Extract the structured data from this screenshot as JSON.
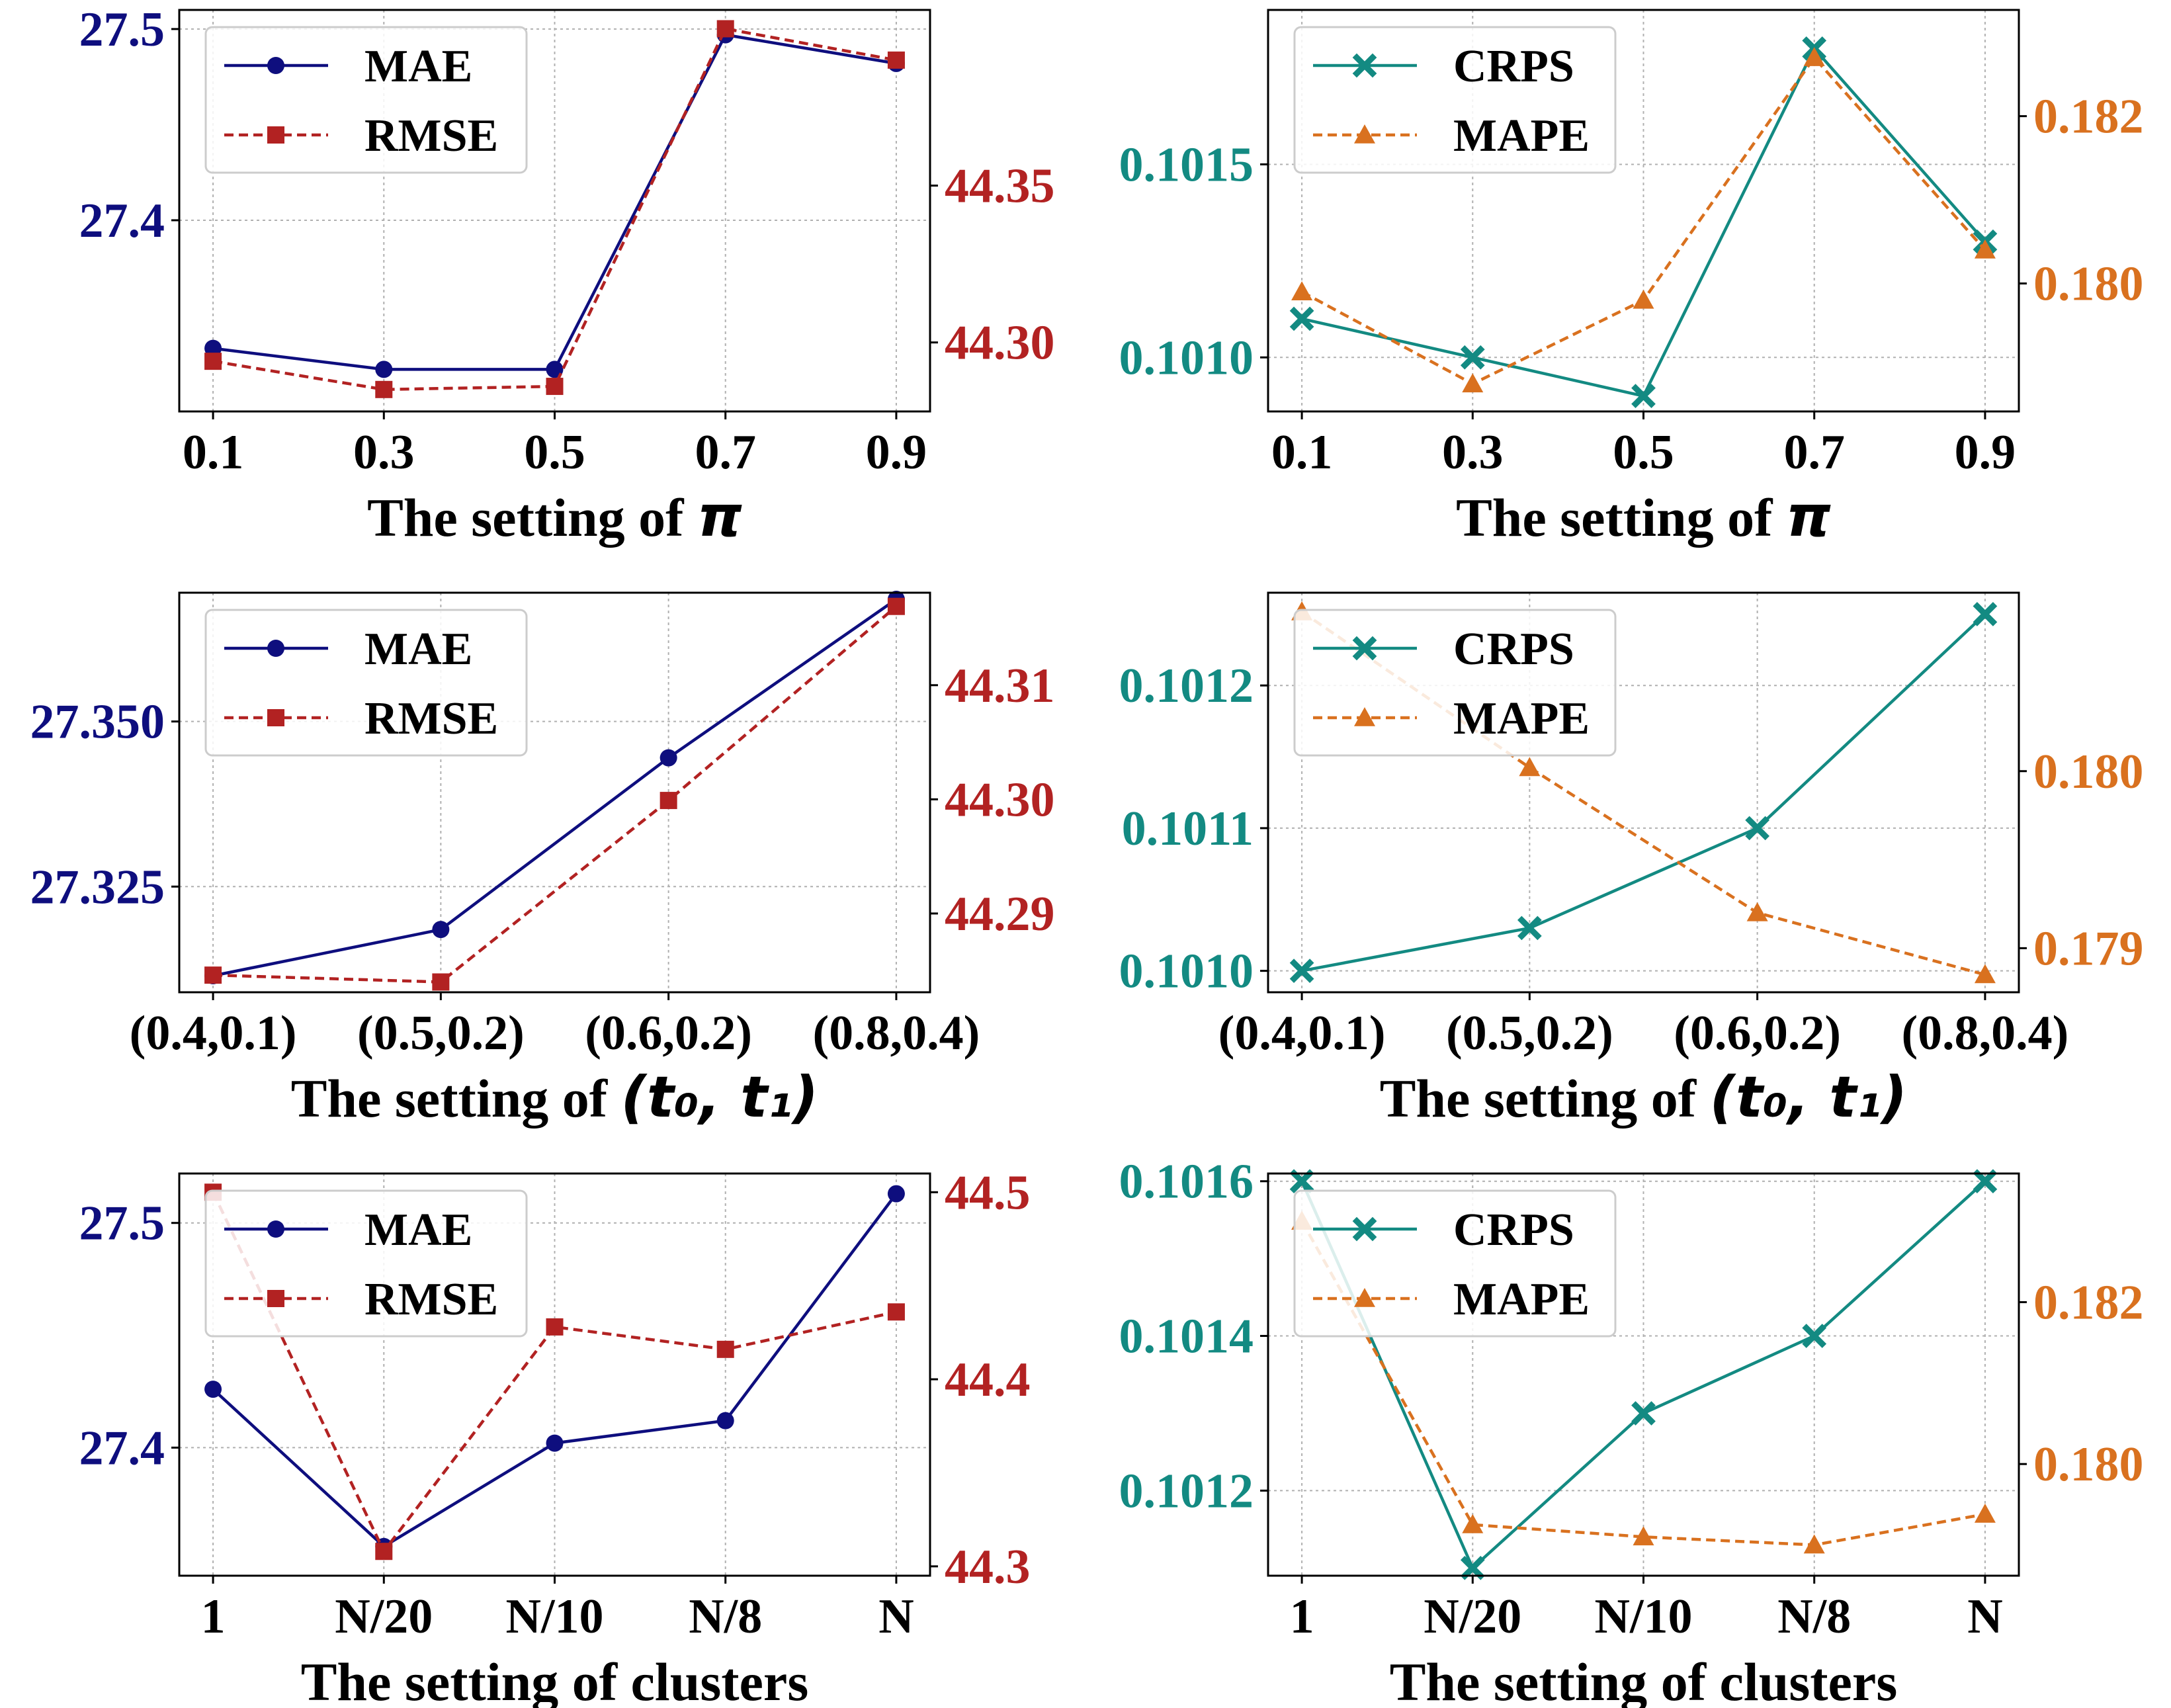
{
  "colors": {
    "mae": "#0e0e7e",
    "rmse": "#b22222",
    "crps": "#138a82",
    "mape": "#d9711f",
    "grid": "#b0b0b0",
    "axis": "#000000"
  },
  "chart_data": [
    {
      "type": "line",
      "panel": "top-left",
      "xlabel_text": "The setting of ",
      "xlabel_math": "π",
      "categories": [
        "0.1",
        "0.3",
        "0.5",
        "0.7",
        "0.9"
      ],
      "left_axis": {
        "ylim": [
          27.3,
          27.51
        ],
        "ticks": [
          27.4,
          27.5
        ],
        "tick_labels": [
          "27.4",
          "27.5"
        ]
      },
      "right_axis": {
        "ylim": [
          44.278,
          44.406
        ],
        "ticks": [
          44.3,
          44.35
        ],
        "tick_labels": [
          "44.30",
          "44.35"
        ]
      },
      "legend": "top-left",
      "series": [
        {
          "name": "MAE",
          "axis": "left",
          "color_key": "mae",
          "marker": "circle",
          "dash": "solid",
          "values": [
            27.333,
            27.322,
            27.322,
            27.497,
            27.482
          ]
        },
        {
          "name": "RMSE",
          "axis": "right",
          "color_key": "rmse",
          "marker": "square",
          "dash": "dashed",
          "values": [
            44.294,
            44.285,
            44.286,
            44.4,
            44.39
          ]
        }
      ]
    },
    {
      "type": "line",
      "panel": "top-right",
      "xlabel_text": "The setting of ",
      "xlabel_math": "π",
      "categories": [
        "0.1",
        "0.3",
        "0.5",
        "0.7",
        "0.9"
      ],
      "left_axis": {
        "ylim": [
          0.10086,
          0.1019
        ],
        "ticks": [
          0.101,
          0.1015
        ],
        "tick_labels": [
          "0.1010",
          "0.1015"
        ]
      },
      "right_axis": {
        "ylim": [
          0.17847,
          0.18327
        ],
        "ticks": [
          0.18,
          0.182
        ],
        "tick_labels": [
          "0.180",
          "0.182"
        ]
      },
      "legend": "top-left",
      "series": [
        {
          "name": "CRPS",
          "axis": "left",
          "color_key": "crps",
          "marker": "x",
          "dash": "solid",
          "values": [
            0.1011,
            0.101,
            0.1009,
            0.1018,
            0.1013
          ]
        },
        {
          "name": "MAPE",
          "axis": "right",
          "color_key": "mape",
          "marker": "triangle",
          "dash": "dashed",
          "values": [
            0.1799,
            0.1788,
            0.1798,
            0.1827,
            0.1804
          ]
        }
      ]
    },
    {
      "type": "line",
      "panel": "middle-left",
      "xlabel_text": "The setting of ",
      "xlabel_math": "(t₀, t₁)",
      "categories": [
        "(0.4,0.1)",
        "(0.5,0.2)",
        "(0.6,0.2)",
        "(0.8,0.4)"
      ],
      "left_axis": {
        "ylim": [
          27.309,
          27.3695
        ],
        "ticks": [
          27.325,
          27.35
        ],
        "tick_labels": [
          "27.325",
          "27.350"
        ]
      },
      "right_axis": {
        "ylim": [
          44.2831,
          44.3181
        ],
        "ticks": [
          44.29,
          44.3,
          44.31
        ],
        "tick_labels": [
          "44.29",
          "44.30",
          "44.31"
        ]
      },
      "legend": "top-left",
      "series": [
        {
          "name": "MAE",
          "axis": "left",
          "color_key": "mae",
          "marker": "circle",
          "dash": "solid",
          "values": [
            27.3115,
            27.3185,
            27.3445,
            27.3685
          ]
        },
        {
          "name": "RMSE",
          "axis": "right",
          "color_key": "rmse",
          "marker": "square",
          "dash": "dashed",
          "values": [
            44.2846,
            44.284,
            44.2999,
            44.3169
          ]
        }
      ]
    },
    {
      "type": "line",
      "panel": "middle-right",
      "xlabel_text": "The setting of ",
      "xlabel_math": "(t₀, t₁)",
      "categories": [
        "(0.4,0.1)",
        "(0.5,0.2)",
        "(0.6,0.2)",
        "(0.8,0.4)"
      ],
      "left_axis": {
        "ylim": [
          0.100985,
          0.101265
        ],
        "ticks": [
          0.101,
          0.1011,
          0.1012
        ],
        "tick_labels": [
          "0.1010",
          "0.1011",
          "0.1012"
        ]
      },
      "right_axis": {
        "ylim": [
          0.178751,
          0.181008
        ],
        "ticks": [
          0.179,
          0.18
        ],
        "tick_labels": [
          "0.179",
          "0.180"
        ]
      },
      "legend": "top-left",
      "series": [
        {
          "name": "CRPS",
          "axis": "left",
          "color_key": "crps",
          "marker": "x",
          "dash": "solid",
          "values": [
            0.101,
            0.10103,
            0.1011,
            0.10125
          ]
        },
        {
          "name": "MAPE",
          "axis": "right",
          "color_key": "mape",
          "marker": "triangle",
          "dash": "dashed",
          "values": [
            0.1809,
            0.18002,
            0.1792,
            0.17885
          ]
        }
      ]
    },
    {
      "type": "line",
      "panel": "bottom-left",
      "xlabel_text": "The setting of clusters",
      "xlabel_math": "",
      "categories": [
        "1",
        "N/20",
        "N/10",
        "N/8",
        "N"
      ],
      "left_axis": {
        "ylim": [
          27.343,
          27.522
        ],
        "ticks": [
          27.4,
          27.5
        ],
        "tick_labels": [
          "27.4",
          "27.5"
        ]
      },
      "right_axis": {
        "ylim": [
          44.295,
          44.51
        ],
        "ticks": [
          44.3,
          44.4,
          44.5
        ],
        "tick_labels": [
          "44.3",
          "44.4",
          "44.5"
        ]
      },
      "legend": "top-left",
      "series": [
        {
          "name": "MAE",
          "axis": "left",
          "color_key": "mae",
          "marker": "circle",
          "dash": "solid",
          "values": [
            27.426,
            27.356,
            27.402,
            27.412,
            27.513
          ]
        },
        {
          "name": "RMSE",
          "axis": "right",
          "color_key": "rmse",
          "marker": "square",
          "dash": "dashed",
          "values": [
            44.5,
            44.308,
            44.428,
            44.416,
            44.436
          ]
        }
      ]
    },
    {
      "type": "line",
      "panel": "bottom-right",
      "xlabel_text": "The setting of clusters",
      "xlabel_math": "",
      "categories": [
        "1",
        "N/20",
        "N/10",
        "N/8",
        "N"
      ],
      "left_axis": {
        "ylim": [
          0.10109,
          0.10161
        ],
        "ticks": [
          0.1012,
          0.1014,
          0.1016
        ],
        "tick_labels": [
          "0.1012",
          "0.1014",
          "0.1016"
        ]
      },
      "right_axis": {
        "ylim": [
          0.17862,
          0.18359
        ],
        "ticks": [
          0.18,
          0.182
        ],
        "tick_labels": [
          "0.180",
          "0.182"
        ]
      },
      "legend": "top-left",
      "series": [
        {
          "name": "CRPS",
          "axis": "left",
          "color_key": "crps",
          "marker": "x",
          "dash": "solid",
          "values": [
            0.1016,
            0.1011,
            0.1013,
            0.1014,
            0.1016
          ]
        },
        {
          "name": "MAPE",
          "axis": "right",
          "color_key": "mape",
          "marker": "triangle",
          "dash": "dashed",
          "values": [
            0.183,
            0.17925,
            0.1791,
            0.179,
            0.17938
          ]
        }
      ]
    }
  ]
}
